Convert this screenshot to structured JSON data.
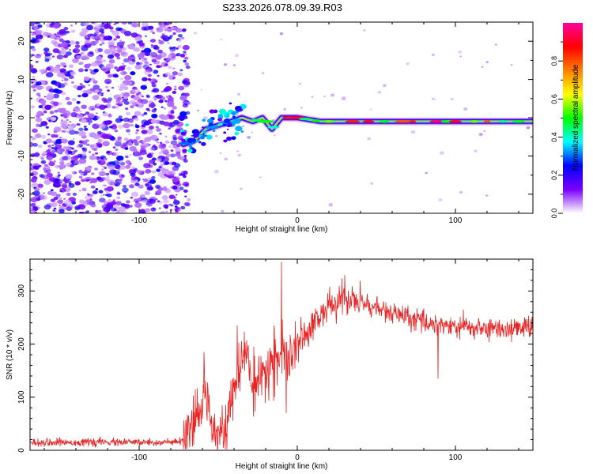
{
  "title": "S233.2026.078.09.39.R03",
  "chart_data": [
    {
      "type": "heatmap",
      "name": "spectrogram",
      "xlabel": "Height of straight line (km)",
      "ylabel": "Frequency (Hz)",
      "xlim": [
        -169,
        149
      ],
      "ylim": [
        -25,
        25
      ],
      "xticks": [
        -100,
        0,
        100
      ],
      "yticks": [
        -20,
        -10,
        0,
        10,
        20
      ],
      "xtick_labels": [
        "-100",
        "0",
        "100"
      ],
      "ytick_labels": [
        "-20",
        "-10",
        "0",
        "10",
        "20"
      ],
      "colorbar": {
        "label": "Normalized spectral amplitude",
        "range": [
          0,
          1
        ],
        "ticks": [
          0.0,
          0.2,
          0.4,
          0.6,
          0.8
        ],
        "tick_labels": [
          "0.0",
          "0.2",
          "0.4",
          "0.6",
          "0.8"
        ],
        "colors": [
          "#ffffff",
          "#7a00ff",
          "#0000ff",
          "#00ffff",
          "#00ff00",
          "#ffff00",
          "#ff8000",
          "#ff0000",
          "#ff00a0"
        ]
      },
      "noise_region_x": [
        -169,
        -69
      ],
      "ridge": [
        {
          "x": -72,
          "freq": -7
        },
        {
          "x": -65,
          "freq": -6
        },
        {
          "x": -58,
          "freq": -3
        },
        {
          "x": -50,
          "freq": -2
        },
        {
          "x": -42,
          "freq": -1
        },
        {
          "x": -35,
          "freq": 0
        },
        {
          "x": -28,
          "freq": -1
        },
        {
          "x": -22,
          "freq": 0
        },
        {
          "x": -16,
          "freq": -3
        },
        {
          "x": -10,
          "freq": 0
        },
        {
          "x": 0,
          "freq": 0
        },
        {
          "x": 15,
          "freq": -1
        },
        {
          "x": 40,
          "freq": -1
        },
        {
          "x": 80,
          "freq": -1
        },
        {
          "x": 100,
          "freq": -1
        },
        {
          "x": 125,
          "freq": -1
        },
        {
          "x": 149,
          "freq": -1
        }
      ]
    },
    {
      "type": "line",
      "name": "snr",
      "xlabel": "Height of straight line (km)",
      "ylabel": "SNR (10 * v/v)",
      "xlim": [
        -169,
        149
      ],
      "ylim": [
        0,
        360
      ],
      "xticks": [
        -100,
        0,
        100
      ],
      "yticks": [
        0,
        100,
        200,
        300
      ],
      "xtick_labels": [
        "-100",
        "0",
        "100"
      ],
      "ytick_labels": [
        "0",
        "100",
        "200",
        "300"
      ],
      "color": "#ee2222",
      "envelope": [
        {
          "x": -169,
          "y": 15
        },
        {
          "x": -75,
          "y": 15
        },
        {
          "x": -69,
          "y": 25
        },
        {
          "x": -63,
          "y": 60
        },
        {
          "x": -58,
          "y": 110
        },
        {
          "x": -53,
          "y": 45
        },
        {
          "x": -45,
          "y": 40
        },
        {
          "x": -40,
          "y": 110
        },
        {
          "x": -36,
          "y": 160
        },
        {
          "x": -32,
          "y": 190
        },
        {
          "x": -28,
          "y": 120
        },
        {
          "x": -24,
          "y": 110
        },
        {
          "x": -20,
          "y": 150
        },
        {
          "x": -14,
          "y": 170
        },
        {
          "x": -10,
          "y": 180
        },
        {
          "x": -5,
          "y": 160
        },
        {
          "x": 0,
          "y": 200
        },
        {
          "x": 10,
          "y": 240
        },
        {
          "x": 20,
          "y": 270
        },
        {
          "x": 30,
          "y": 285
        },
        {
          "x": 40,
          "y": 280
        },
        {
          "x": 55,
          "y": 262
        },
        {
          "x": 75,
          "y": 245
        },
        {
          "x": 100,
          "y": 232
        },
        {
          "x": 125,
          "y": 228
        },
        {
          "x": 149,
          "y": 232
        }
      ],
      "peaks": [
        {
          "x": -10,
          "y": 355
        },
        {
          "x": -59,
          "y": 185
        },
        {
          "x": -38,
          "y": 235
        },
        {
          "x": 30,
          "y": 330
        },
        {
          "x": 105,
          "y": 265
        },
        {
          "x": 89,
          "y": 135
        },
        {
          "x": -7,
          "y": 70
        }
      ]
    }
  ]
}
